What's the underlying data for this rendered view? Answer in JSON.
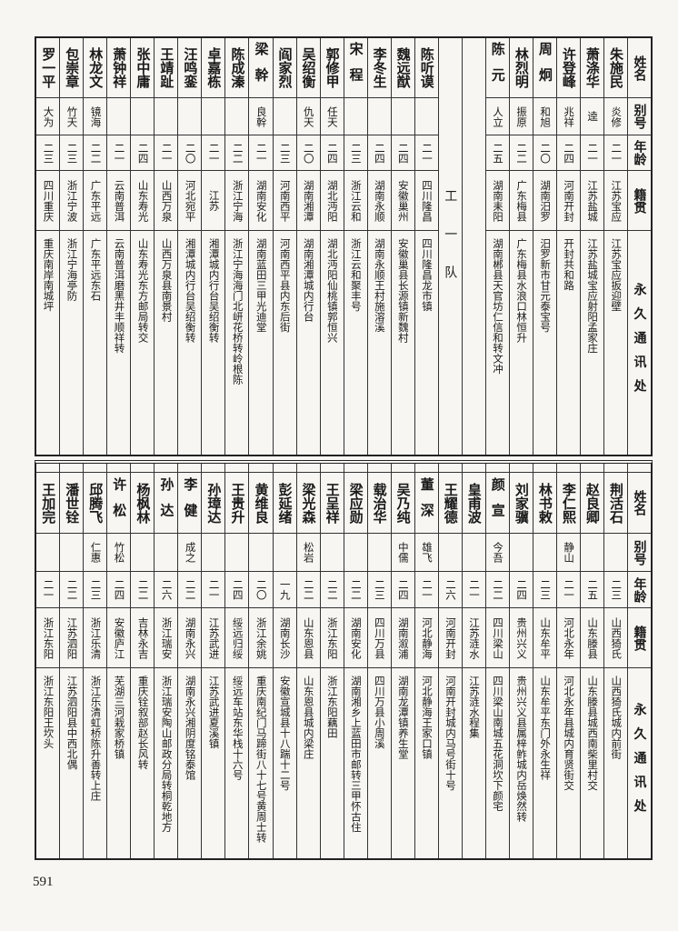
{
  "headers": {
    "name": "姓名",
    "alias": "别号",
    "age": "年龄",
    "native": "籍贯",
    "address": "永久通讯处"
  },
  "top": {
    "team_label": "工一队",
    "group1": [
      {
        "name": "朱施民",
        "alias": "炎修",
        "age": "二一",
        "native": "江苏宝应",
        "address": "江苏宝应扳迎壁"
      },
      {
        "name": "萧涤华",
        "alias": "逵",
        "age": "二一",
        "native": "江苏盐城",
        "address": "江苏盐城宝应射阳孟家庄"
      },
      {
        "name": "许登峰",
        "alias": "兆祥",
        "age": "二四",
        "native": "河南开封",
        "address": "开封共和路"
      },
      {
        "name": "周炯",
        "alias": "和旭",
        "age": "二〇",
        "native": "湖南汨罗",
        "address": "汨罗新市甘元泰宝号"
      },
      {
        "name": "林烈明",
        "alias": "振原",
        "age": "二二",
        "native": "广东梅县",
        "address": "广东梅县水浪口林恒升"
      },
      {
        "name": "陈元",
        "alias": "人立",
        "age": "二五",
        "native": "湖南耒阳",
        "address": "湖南郴县天官坊仁信和转文冲"
      }
    ],
    "group2": [
      {
        "name": "陈听谟",
        "alias": "",
        "age": "二一",
        "native": "四川隆昌",
        "address": "四川隆昌龙市镇"
      },
      {
        "name": "魏远猷",
        "alias": "",
        "age": "二四",
        "native": "安徽巢州",
        "address": "安徽巢县长源镇新魏村"
      },
      {
        "name": "李冬生",
        "alias": "",
        "age": "二四",
        "native": "湖南永顺",
        "address": "湖南永顺王村施溶溪"
      },
      {
        "name": "宋程",
        "alias": "",
        "age": "二三",
        "native": "浙江云和",
        "address": "浙江云和聚丰号"
      },
      {
        "name": "郭修甲",
        "alias": "任天",
        "age": "二四",
        "native": "湖北沔阳",
        "address": "湖北沔阳仙桃镇郭恒兴"
      },
      {
        "name": "吴绍衡",
        "alias": "仇天",
        "age": "二〇",
        "native": "湖南湘潭",
        "address": "湖南湘潭城内行台"
      },
      {
        "name": "阎家烈",
        "alias": "",
        "age": "二三",
        "native": "河南西平",
        "address": "河南西平县内东后街"
      },
      {
        "name": "梁幹",
        "alias": "良幹",
        "age": "二一",
        "native": "湖南安化",
        "address": "湖南蓝田三甲光迪堂"
      },
      {
        "name": "陈成溱",
        "alias": "",
        "age": "二二",
        "native": "浙江宁海",
        "address": "浙江宁海海门北岍花桥转岭根陈"
      },
      {
        "name": "卓嘉栋",
        "alias": "",
        "age": "二一",
        "native": "江苏",
        "address": "湘潭城内行台吴绍衡转"
      },
      {
        "name": "汪鸣銮",
        "alias": "",
        "age": "二〇",
        "native": "河北宛平",
        "address": "湘潭城内行台吴绍衡转"
      },
      {
        "name": "王靖趾",
        "alias": "",
        "age": "二一",
        "native": "山西万泉",
        "address": "山西万泉县南景村"
      },
      {
        "name": "张中庸",
        "alias": "",
        "age": "二四",
        "native": "山东寿光",
        "address": "山东寿光东方邮局转交"
      },
      {
        "name": "萧钟祥",
        "alias": "",
        "age": "二一",
        "native": "云南普洱",
        "address": "云南普洱磨黑井丰顺祥转"
      },
      {
        "name": "林龙文",
        "alias": "镜海",
        "age": "二二",
        "native": "广东平远",
        "address": "广东平远东石"
      },
      {
        "name": "包崇章",
        "alias": "竹天",
        "age": "二三",
        "native": "浙江宁波",
        "address": "浙江宁海亭防"
      },
      {
        "name": "罗一平",
        "alias": "大为",
        "age": "二三",
        "native": "四川重庆",
        "address": "重庆南岸南城坪"
      }
    ]
  },
  "bottom": {
    "persons": [
      {
        "name": "荆活石",
        "alias": "",
        "age": "二三",
        "native": "山西猗氏",
        "address": "山西猗氏城内前街"
      },
      {
        "name": "赵良卿",
        "alias": "",
        "age": "二五",
        "native": "山东滕县",
        "address": "山东滕县城西南柴里村交"
      },
      {
        "name": "李仁熙",
        "alias": "静山",
        "age": "二一",
        "native": "河北永年",
        "address": "河北永年县城内育贤街交"
      },
      {
        "name": "林书敕",
        "alias": "",
        "age": "二三",
        "native": "山东牟平",
        "address": "山东牟平东门外永生祥"
      },
      {
        "name": "刘家骥",
        "alias": "",
        "age": "二四",
        "native": "贵州兴义",
        "address": "贵州兴义县属梓鲊城内岳焕然转"
      },
      {
        "name": "颜宣",
        "alias": "今吾",
        "age": "二二",
        "native": "四川梁山",
        "address": "四川梁山南城五花洞坎下颜宅"
      },
      {
        "name": "皇甫波",
        "alias": "",
        "age": "二一",
        "native": "江苏涟水",
        "address": "江苏涟水程集"
      },
      {
        "name": "王耀德",
        "alias": "",
        "age": "二六",
        "native": "河南开封",
        "address": "河南开封城内马号街十号"
      },
      {
        "name": "董深",
        "alias": "雄飞",
        "age": "二一",
        "native": "河北静海",
        "address": "河北静海王家口镇"
      },
      {
        "name": "吴乃纯",
        "alias": "中儒",
        "age": "二四",
        "native": "湖南溆浦",
        "address": "湖南龙潭镇养生堂"
      },
      {
        "name": "载治华",
        "alias": "",
        "age": "二三",
        "native": "四川万县",
        "address": "四川万县小周溪"
      },
      {
        "name": "梁应勋",
        "alias": "",
        "age": "二二",
        "native": "湖南安化",
        "address": "湖南湘乡上蓝田市邮转三甲怀古住"
      },
      {
        "name": "王呈祥",
        "alias": "",
        "age": "二二",
        "native": "浙江东阳",
        "address": "浙江东阳藕田"
      },
      {
        "name": "梁光森",
        "alias": "松岩",
        "age": "二二",
        "native": "山东恩县",
        "address": "山东恩县城内梁庄"
      },
      {
        "name": "彭延绪",
        "alias": "",
        "age": "一九",
        "native": "湖南长沙",
        "address": "安徽宣城县十八踹十二号"
      },
      {
        "name": "黄维良",
        "alias": "",
        "age": "二〇",
        "native": "浙江余姚",
        "address": "重庆南纪门马蹄街八十七号黄周士转"
      },
      {
        "name": "王贵升",
        "alias": "",
        "age": "二四",
        "native": "绥远归绥",
        "address": "绥远车站东华栈十六号"
      },
      {
        "name": "孙璋达",
        "alias": "",
        "age": "二一",
        "native": "江苏武进",
        "address": "江苏武进夏溪镇"
      },
      {
        "name": "李健",
        "alias": "成之",
        "age": "二二",
        "native": "湖南永兴",
        "address": "湖南永兴湘阴度铭泰馆"
      },
      {
        "name": "孙达",
        "alias": "",
        "age": "二六",
        "native": "浙江瑞安",
        "address": "浙江瑞安陶山邮政分局转桐乾地方"
      },
      {
        "name": "杨枫林",
        "alias": "",
        "age": "二二",
        "native": "吉林永吉",
        "address": "重庆铨叙部赵长风转"
      },
      {
        "name": "许松",
        "alias": "竹松",
        "age": "二四",
        "native": "安徽庐江",
        "address": "芜湖三河栽家桥镇"
      },
      {
        "name": "邱腾飞",
        "alias": "仁惠",
        "age": "二三",
        "native": "浙江乐清",
        "address": "浙江乐清虹桥陈升善转上庄"
      },
      {
        "name": "潘世铨",
        "alias": "",
        "age": "二二",
        "native": "江苏泗阳",
        "address": "江苏泗阳县中西北偶"
      },
      {
        "name": "王加完",
        "alias": "",
        "age": "二一",
        "native": "浙江东阳",
        "address": "浙江东阳王坎头"
      }
    ]
  },
  "page_number": "591"
}
